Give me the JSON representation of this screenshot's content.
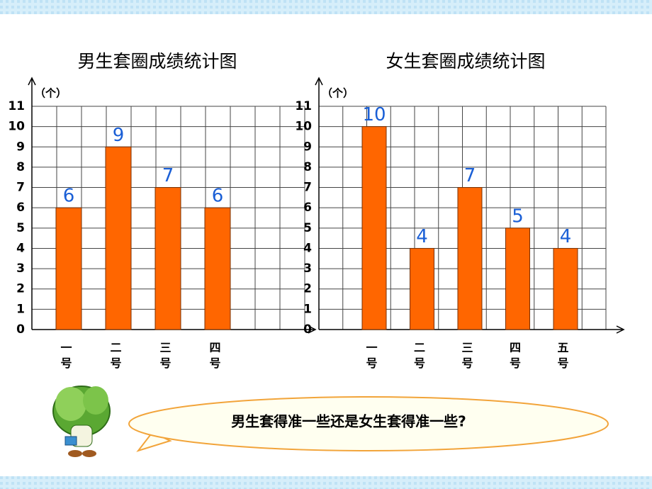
{
  "chart_data": [
    {
      "type": "bar",
      "title": "男生套圈成绩统计图",
      "y_label": "（个）",
      "categories": [
        "一号",
        "二号",
        "三号",
        "四号"
      ],
      "values": [
        6,
        9,
        7,
        6
      ],
      "color": "#ff6600",
      "label_color": "#1a5fd6",
      "ylim": [
        0,
        11
      ],
      "yticks": [
        0,
        1,
        2,
        3,
        4,
        5,
        6,
        7,
        8,
        9,
        10,
        11
      ],
      "grid": true
    },
    {
      "type": "bar",
      "title": "女生套圈成绩统计图",
      "y_label": "（个）",
      "categories": [
        "一号",
        "二号",
        "三号",
        "四号",
        "五号"
      ],
      "values": [
        10,
        4,
        7,
        5,
        4
      ],
      "color": "#ff6600",
      "label_color": "#1a5fd6",
      "ylim": [
        0,
        11
      ],
      "yticks": [
        0,
        1,
        2,
        3,
        4,
        5,
        6,
        7,
        8,
        9,
        10,
        11
      ],
      "grid": true
    }
  ],
  "question": "男生套得准一些还是女生套得准一些?"
}
